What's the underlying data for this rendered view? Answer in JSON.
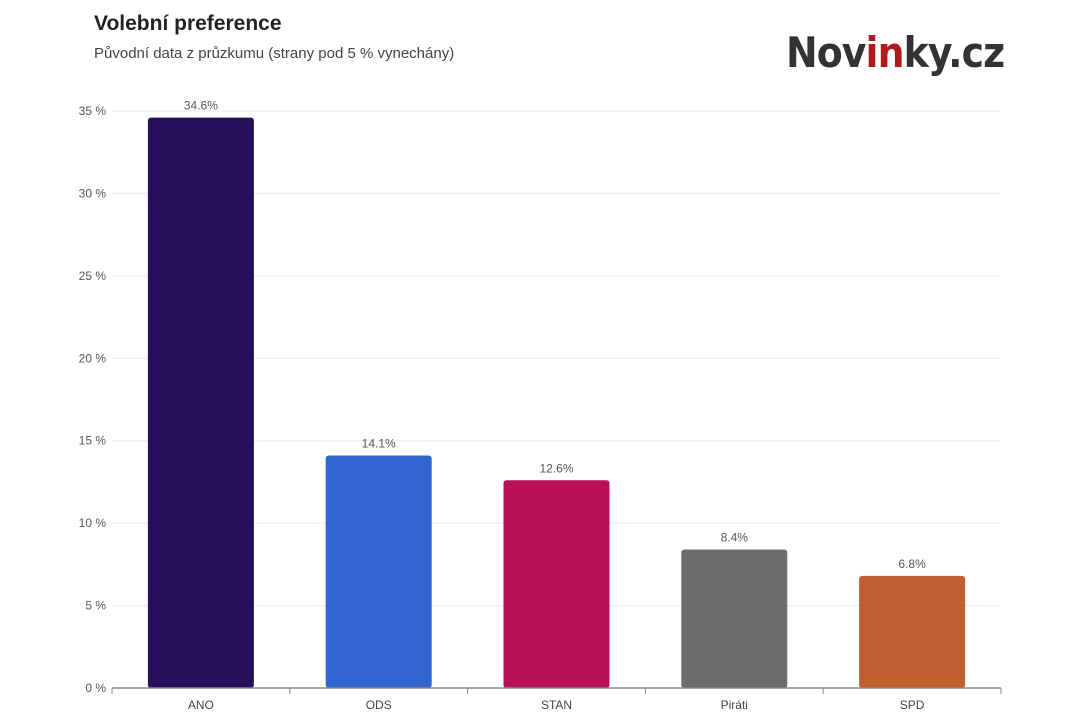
{
  "header": {
    "title": "Volební preference",
    "subtitle": "Původní data z průzkumu (strany pod 5 % vynechány)",
    "logo": {
      "pre": "Nov",
      "accent": "in",
      "post": "ky.cz",
      "accent_color": "#b11a1a"
    }
  },
  "chart_data": {
    "type": "bar",
    "title": "Volební preference",
    "subtitle": "Původní data z průzkumu (strany pod 5 % vynechány)",
    "categories": [
      "ANO",
      "ODS",
      "STAN",
      "Piráti",
      "SPD"
    ],
    "values": [
      34.6,
      14.1,
      12.6,
      8.4,
      6.8
    ],
    "data_labels": [
      "34.6%",
      "14.1%",
      "12.6%",
      "8.4%",
      "6.8%"
    ],
    "colors": [
      "#26105c",
      "#3166d0",
      "#b80f5a",
      "#6d6d6d",
      "#c05f2f"
    ],
    "yticks": [
      0,
      5,
      10,
      15,
      20,
      25,
      30,
      35
    ],
    "ytick_labels": [
      "0 %",
      "5 %",
      "10 %",
      "15 %",
      "20 %",
      "25 %",
      "30 %",
      "35 %"
    ],
    "ylim": [
      0,
      35
    ],
    "xlabel": "",
    "ylabel": "",
    "grid": true,
    "legend": "none"
  }
}
